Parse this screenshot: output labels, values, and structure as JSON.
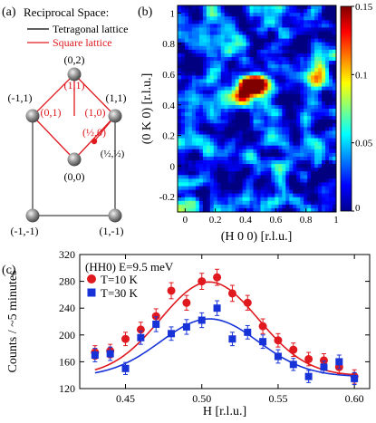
{
  "panel_labels": {
    "a": "(a)",
    "b": "(b)",
    "c": "(c)"
  },
  "colors": {
    "red": "#e0191e",
    "blue": "#1733d8",
    "sphere": "#8c8c8c"
  },
  "panel_a": {
    "title": "Reciprocal Space:",
    "legend": [
      {
        "label": "Tetragonal lattice",
        "color": "#000000"
      },
      {
        "label": "Square lattice",
        "color": "#e0191e"
      }
    ],
    "lattice_points": [
      "(0,2)",
      "(-1,1)",
      "(1,1)",
      "(0,0)",
      "(-1,-1)",
      "(1,-1)"
    ],
    "square_points": [
      "(1,1)",
      "(0,1)",
      "(1,0)",
      "(½,0)"
    ],
    "half_point": "(½,½)"
  },
  "chart_data": [
    {
      "type": "heatmap",
      "panel": "b",
      "xlabel": "(H 0 0) [r.l.u.]",
      "ylabel": "(0 K 0) [r.l.u.]",
      "xlim": [
        -0.05,
        1.0
      ],
      "ylim": [
        -0.3,
        1.05
      ],
      "x_ticks": [
        "0",
        "0.2",
        "0.4",
        "0.6",
        "0.8",
        "1"
      ],
      "y_ticks": [
        "-0.2",
        "0",
        "0.2",
        "0.4",
        "0.6",
        "0.8",
        "1"
      ],
      "colorbar": {
        "range": [
          0,
          0.15
        ],
        "ticks": [
          "0",
          "0.05",
          "0.1",
          "0.15"
        ]
      },
      "hotspots": [
        {
          "x": 0.43,
          "y": 0.52,
          "value": 0.15
        },
        {
          "x": 0.5,
          "y": 0.55,
          "value": 0.14
        },
        {
          "x": 0.9,
          "y": 0.58,
          "value": 0.12
        },
        {
          "x": 0.35,
          "y": 0.45,
          "value": 0.09
        }
      ]
    },
    {
      "type": "scatter",
      "panel": "c",
      "annotation": "(HH0) E=9.5 meV",
      "xlabel": "H [r.l.u.]",
      "ylabel": "Counts / ~5 minutes",
      "xlim": [
        0.42,
        0.61
      ],
      "ylim": [
        120,
        320
      ],
      "x_ticks": [
        0.45,
        0.5,
        0.55,
        0.6
      ],
      "x_tick_labels": [
        "0.45",
        "0.50",
        "0.55",
        "0.60"
      ],
      "y_ticks": [
        120,
        160,
        200,
        240,
        280,
        320
      ],
      "series": [
        {
          "name": "T=10 K",
          "color": "#e0191e",
          "marker": "circle",
          "x": [
            0.43,
            0.44,
            0.45,
            0.46,
            0.47,
            0.48,
            0.49,
            0.5,
            0.51,
            0.52,
            0.53,
            0.54,
            0.55,
            0.56,
            0.57,
            0.58,
            0.59,
            0.6
          ],
          "y": [
            174,
            176,
            194,
            208,
            228,
            266,
            248,
            280,
            286,
            262,
            248,
            213,
            192,
            178,
            164,
            162,
            152,
            138
          ],
          "err": [
            10,
            10,
            10,
            11,
            11,
            12,
            11,
            12,
            12,
            12,
            11,
            11,
            10,
            10,
            10,
            10,
            10,
            10
          ],
          "fit": {
            "baseline": 139,
            "amplitude": 140,
            "center": 0.505,
            "sigma": 0.032
          }
        },
        {
          "name": "T=30 K",
          "color": "#1733d8",
          "marker": "square",
          "x": [
            0.43,
            0.44,
            0.45,
            0.46,
            0.47,
            0.48,
            0.49,
            0.5,
            0.51,
            0.52,
            0.53,
            0.54,
            0.55,
            0.56,
            0.57,
            0.58,
            0.59,
            0.6
          ],
          "y": [
            170,
            172,
            150,
            196,
            216,
            202,
            212,
            222,
            240,
            194,
            204,
            190,
            168,
            156,
            138,
            152,
            160,
            135
          ],
          "err": [
            10,
            10,
            9,
            10,
            11,
            10,
            11,
            11,
            11,
            10,
            10,
            10,
            10,
            9,
            9,
            9,
            10,
            9
          ],
          "fit": {
            "baseline": 138,
            "amplitude": 86,
            "center": 0.505,
            "sigma": 0.032
          }
        }
      ]
    }
  ]
}
